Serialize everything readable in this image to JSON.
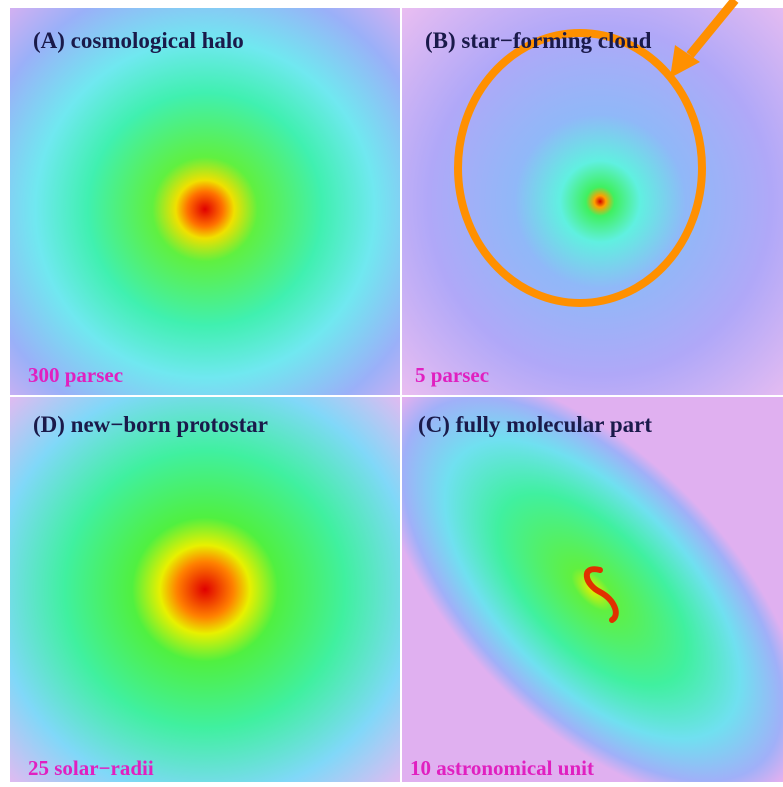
{
  "panels": [
    {
      "title": "(A) cosmological halo",
      "scale": "300 parsec"
    },
    {
      "title": "(B) star−forming cloud",
      "scale": "5 parsec"
    },
    {
      "title": "(D) new−born protostar",
      "scale": "25 solar−radii"
    },
    {
      "title": "(C) fully molecular part",
      "scale": "10 astronomical unit"
    }
  ]
}
